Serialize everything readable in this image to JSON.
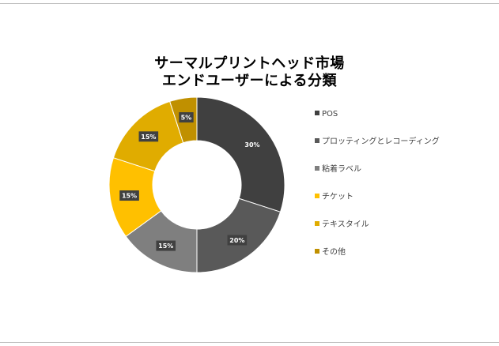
{
  "chart_data": {
    "type": "pie",
    "donut": true,
    "title_lines": [
      "サーマルプリントヘッド市場",
      "エンドユーザーによる分類"
    ],
    "categories": [
      "POS",
      "プロッティングとレコーディング",
      "粘着ラベル",
      "チケット",
      "テキスタイル",
      "その他"
    ],
    "values": [
      30,
      20,
      15,
      15,
      15,
      5
    ],
    "data_labels": [
      "30%",
      "20%",
      "15%",
      "15%",
      "15%",
      "5%"
    ],
    "colors": [
      "#404040",
      "#595959",
      "#7f7f7f",
      "#ffc000",
      "#e0ac00",
      "#c09000"
    ],
    "legend_position": "right"
  }
}
